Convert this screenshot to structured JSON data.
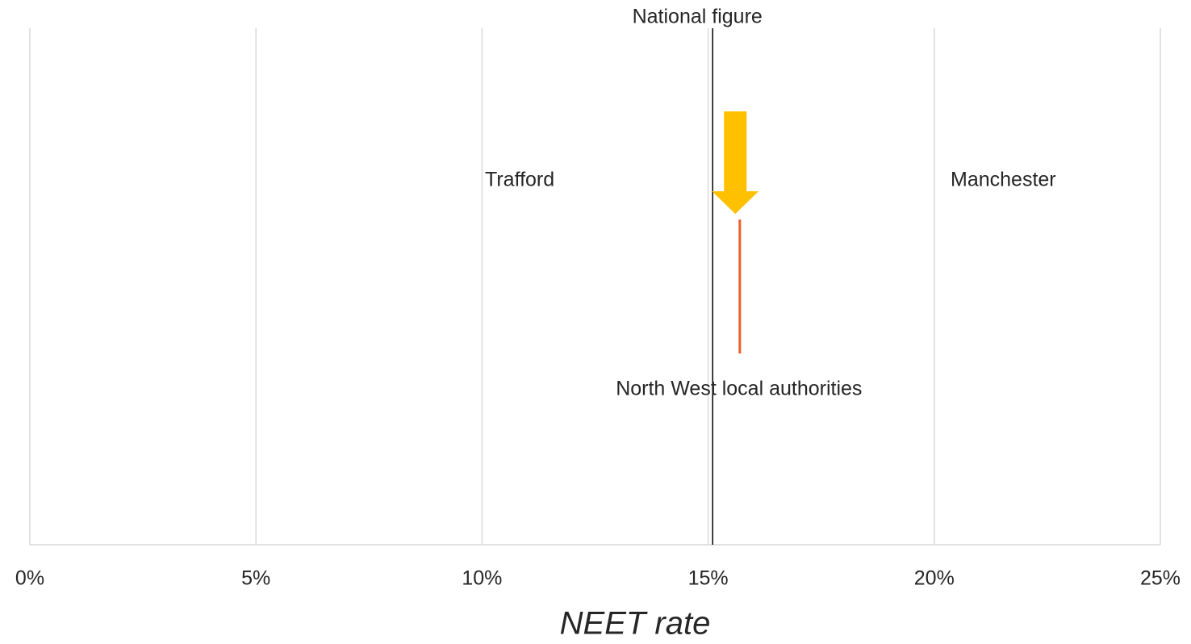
{
  "chart_data": {
    "type": "strip",
    "xlabel": "NEET rate",
    "xlim": [
      0,
      25
    ],
    "xticks": [
      {
        "value": 0,
        "label": "0%"
      },
      {
        "value": 5,
        "label": "5%"
      },
      {
        "value": 10,
        "label": "10%"
      },
      {
        "value": 15,
        "label": "15%"
      },
      {
        "value": 20,
        "label": "20%"
      },
      {
        "value": 25,
        "label": "25%"
      }
    ],
    "grid": true,
    "reference_lines": [
      {
        "name": "National figure",
        "value": 15.1,
        "color": "#000000"
      },
      {
        "name": "North West local authorities",
        "value": 15.7,
        "color": "#ed5f28"
      }
    ],
    "arrow": {
      "value": 15.6,
      "color": "#ffc000"
    },
    "annotations": [
      "Trafford",
      "Manchester"
    ]
  }
}
